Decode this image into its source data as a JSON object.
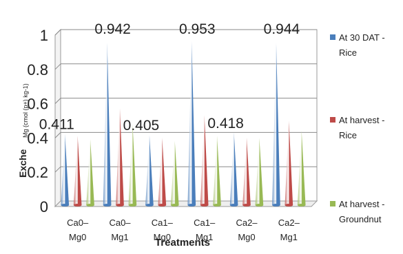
{
  "chart_data": {
    "type": "bar",
    "bar_shape": "cone",
    "title": "",
    "xlabel": "Treatments",
    "ylabel": "Exche",
    "ylabel_overlap": "Mg (cmol (p+) kg-1)",
    "ylim": [
      0,
      1
    ],
    "yticks": [
      "0",
      "0.2",
      "0.4",
      "0.6",
      "0.8",
      "1"
    ],
    "grid": true,
    "legend_position": "right",
    "categories": [
      [
        "Ca0–",
        "Mg0"
      ],
      [
        "Ca0–",
        "Mg1"
      ],
      [
        "Ca1–",
        "Mg0"
      ],
      [
        "Ca1–",
        "Mg1"
      ],
      [
        "Ca2–",
        "Mg0"
      ],
      [
        "Ca2–",
        "Mg1"
      ]
    ],
    "series": [
      {
        "name": "At 30 DAT - Rice",
        "legend_lines": [
          "At 30 DAT -",
          "Rice"
        ],
        "color": "#4a7ebb",
        "values": [
          0.411,
          0.942,
          0.405,
          0.953,
          0.418,
          0.944
        ],
        "data_labels": [
          "0.411",
          "0.942",
          "0.405",
          "0.953",
          "0.418",
          "0.944"
        ]
      },
      {
        "name": "At harvest - Rice",
        "legend_lines": [
          "At harvest -",
          "Rice"
        ],
        "color": "#be4b48",
        "values": [
          0.4,
          0.56,
          0.39,
          0.52,
          0.39,
          0.49
        ]
      },
      {
        "name": "At harvest - Groundnut",
        "legend_lines": [
          "At harvest -",
          "Groundnut"
        ],
        "color": "#98b954",
        "values": [
          0.38,
          0.47,
          0.37,
          0.4,
          0.39,
          0.43
        ]
      }
    ]
  }
}
